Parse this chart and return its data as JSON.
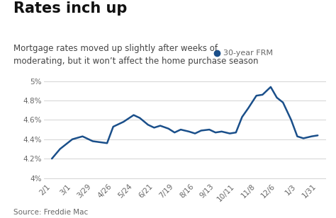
{
  "title": "Rates inch up",
  "subtitle": "Mortgage rates moved up slightly after weeks of\nmoderating, but it won’t affect the home purchase season",
  "source": "Source: Freddie Mac",
  "legend_label": "30-year FRM",
  "line_color": "#1a4f8a",
  "background_color": "#ffffff",
  "x_labels": [
    "2/1",
    "3/1",
    "3/29",
    "4/26",
    "5/24",
    "6/21",
    "7/19",
    "8/16",
    "9/13",
    "10/11",
    "11/8",
    "12/6",
    "1/3",
    "1/31"
  ],
  "x_positions": [
    0,
    1,
    2,
    3,
    4,
    5,
    6,
    7,
    8,
    9,
    10,
    11,
    12,
    13
  ],
  "data_x": [
    0.0,
    0.4,
    1.0,
    1.5,
    2.0,
    2.7,
    3.0,
    3.5,
    4.0,
    4.3,
    4.7,
    5.0,
    5.3,
    5.7,
    6.0,
    6.3,
    6.7,
    7.0,
    7.3,
    7.7,
    8.0,
    8.3,
    8.7,
    9.0,
    9.3,
    9.6,
    10.0,
    10.3,
    10.7,
    11.0,
    11.3,
    11.7,
    12.0,
    12.3,
    12.7,
    13.0
  ],
  "data_y": [
    4.2,
    4.3,
    4.4,
    4.43,
    4.38,
    4.36,
    4.53,
    4.58,
    4.65,
    4.62,
    4.55,
    4.52,
    4.54,
    4.51,
    4.47,
    4.5,
    4.48,
    4.46,
    4.49,
    4.5,
    4.47,
    4.48,
    4.46,
    4.47,
    4.63,
    4.72,
    4.85,
    4.86,
    4.94,
    4.83,
    4.78,
    4.6,
    4.43,
    4.41,
    4.43,
    4.44
  ],
  "ylim": [
    3.97,
    5.05
  ],
  "yticks": [
    4.0,
    4.2,
    4.4,
    4.6,
    4.8,
    5.0
  ],
  "ytick_labels": [
    "4%",
    "4.2%",
    "4.4%",
    "4.6%",
    "4.8%",
    "5%"
  ],
  "title_fontsize": 15,
  "subtitle_fontsize": 8.5,
  "axis_fontsize": 7.5,
  "source_fontsize": 7.5,
  "legend_fontsize": 8,
  "title_color": "#111111",
  "subtitle_color": "#444444",
  "axis_tick_color": "#666666",
  "grid_color": "#cccccc",
  "source_color": "#666666"
}
